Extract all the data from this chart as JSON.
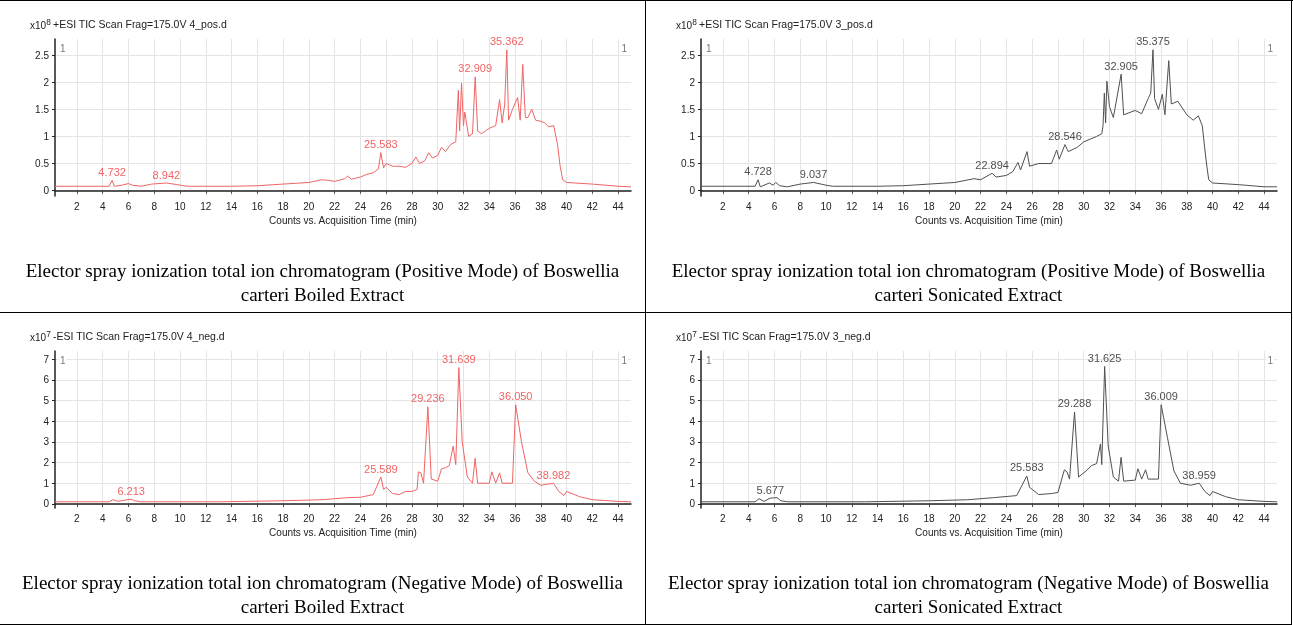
{
  "chart_data": [
    {
      "type": "line",
      "title": "+ESI TIC Scan Frag=175.0V 4_pos.d",
      "subtitle": "Elector spray ionization total ion chromatogram (Positive Mode) of Boswellia carteri Boiled Extract",
      "xlabel": "Counts vs. Acquisition Time (min)",
      "ylabel": "x10$^{8}$",
      "grid": true,
      "marker": "none",
      "xlim": [
        0.3,
        45
      ],
      "xticks": [
        2,
        4,
        6,
        8,
        10,
        12,
        14,
        16,
        18,
        20,
        22,
        24,
        26,
        28,
        30,
        32,
        34,
        36,
        38,
        40,
        42,
        44
      ],
      "ylim": [
        -0.1,
        2.8
      ],
      "yticks": [
        0,
        0.5,
        1,
        1.5,
        2,
        2.5
      ],
      "annotations": [
        "1",
        "1",
        {
          "text": "4.732",
          "x": 4.732,
          "y": 0.19
        },
        {
          "text": "8.942",
          "x": 8.942,
          "y": 0.14
        },
        {
          "text": "25.583",
          "x": 25.583,
          "y": 0.7
        },
        {
          "text": "32.909",
          "x": 32.909,
          "y": 2.1
        },
        {
          "text": "35.362",
          "x": 35.362,
          "y": 2.6
        }
      ],
      "series": [
        {
          "color": "#f06464",
          "x": [
            0.3,
            4.5,
            4.732,
            4.9,
            5.5,
            6.0,
            6.3,
            7,
            7.8,
            8.942,
            9.8,
            10.5,
            14,
            16,
            18,
            20,
            21,
            21.5,
            22,
            22.8,
            23,
            23.3,
            24,
            24.5,
            25,
            25.4,
            25.583,
            25.8,
            26,
            26.5,
            27,
            27.5,
            28,
            28.3,
            28.6,
            29,
            29.3,
            29.6,
            30,
            30.3,
            30.6,
            31,
            31.4,
            31.6,
            31.7,
            31.85,
            32,
            32.1,
            32.4,
            32.7,
            32.909,
            33.1,
            33.4,
            34,
            34.5,
            34.8,
            35,
            35.2,
            35.362,
            35.5,
            35.8,
            36.2,
            36.4,
            36.6,
            36.8,
            37,
            37.3,
            37.6,
            38,
            38.3,
            38.6,
            39,
            39.3,
            39.5,
            39.7,
            40,
            42,
            44,
            45
          ],
          "values": [
            0.08,
            0.08,
            0.19,
            0.08,
            0.1,
            0.13,
            0.1,
            0.08,
            0.12,
            0.14,
            0.11,
            0.08,
            0.08,
            0.09,
            0.12,
            0.15,
            0.2,
            0.19,
            0.17,
            0.22,
            0.27,
            0.21,
            0.25,
            0.3,
            0.33,
            0.4,
            0.7,
            0.42,
            0.5,
            0.45,
            0.45,
            0.43,
            0.5,
            0.62,
            0.5,
            0.55,
            0.7,
            0.6,
            0.65,
            0.8,
            0.72,
            0.85,
            0.9,
            1.85,
            1.1,
            1.98,
            1.2,
            1.45,
            1.0,
            1.05,
            2.1,
            1.1,
            1.05,
            1.15,
            1.2,
            1.68,
            1.25,
            1.6,
            2.6,
            1.3,
            1.5,
            1.72,
            1.3,
            2.33,
            1.35,
            1.35,
            1.5,
            1.3,
            1.28,
            1.25,
            1.18,
            1.2,
            0.85,
            0.45,
            0.2,
            0.15,
            0.12,
            0.08,
            0.07
          ]
        }
      ]
    },
    {
      "type": "line",
      "title": "+ESI TIC Scan Frag=175.0V 3_pos.d",
      "subtitle": "Elector spray ionization total ion chromatogram (Positive Mode) of Boswellia carteri Sonicated Extract",
      "xlabel": "Counts vs. Acquisition Time (min)",
      "ylabel": "x10$^{8}$",
      "grid": true,
      "marker": "none",
      "xlim": [
        0.3,
        45
      ],
      "xticks": [
        2,
        4,
        6,
        8,
        10,
        12,
        14,
        16,
        18,
        20,
        22,
        24,
        26,
        28,
        30,
        32,
        34,
        36,
        38,
        40,
        42,
        44
      ],
      "ylim": [
        -0.1,
        2.8
      ],
      "yticks": [
        0,
        0.5,
        1,
        1.5,
        2,
        2.5
      ],
      "annotations": [
        "1",
        "1",
        {
          "text": "4.728",
          "x": 4.728,
          "y": 0.2
        },
        {
          "text": "9.037",
          "x": 9.037,
          "y": 0.15
        },
        {
          "text": "22.894",
          "x": 22.894,
          "y": 0.32
        },
        {
          "text": "28.546",
          "x": 28.546,
          "y": 0.85
        },
        {
          "text": "32.905",
          "x": 32.905,
          "y": 2.15
        },
        {
          "text": "35.375",
          "x": 35.375,
          "y": 2.6
        }
      ],
      "series": [
        {
          "color": "#505050",
          "x": [
            0.3,
            4.5,
            4.728,
            4.9,
            5.6,
            5.9,
            6.1,
            6.4,
            7,
            8,
            9.037,
            10,
            10.5,
            14,
            16,
            18,
            20,
            21.5,
            22,
            22.894,
            23.2,
            24,
            24.5,
            24.9,
            25.1,
            25.6,
            25.8,
            26.5,
            27.5,
            27.9,
            28.1,
            28.546,
            28.8,
            29.5,
            30,
            30.5,
            31,
            31.4,
            31.5,
            31.6,
            31.7,
            31.8,
            32,
            32.3,
            32.905,
            33.1,
            34,
            34.5,
            35,
            35.2,
            35.375,
            35.5,
            35.8,
            36.1,
            36.3,
            36.6,
            36.8,
            37.3,
            38,
            38.5,
            38.9,
            39.2,
            39.5,
            39.7,
            40,
            42,
            44,
            45
          ],
          "values": [
            0.08,
            0.08,
            0.2,
            0.07,
            0.14,
            0.1,
            0.15,
            0.09,
            0.07,
            0.12,
            0.15,
            0.1,
            0.08,
            0.08,
            0.09,
            0.12,
            0.15,
            0.22,
            0.2,
            0.32,
            0.25,
            0.28,
            0.35,
            0.52,
            0.38,
            0.72,
            0.45,
            0.5,
            0.5,
            0.75,
            0.58,
            0.85,
            0.72,
            0.8,
            0.9,
            0.95,
            1.0,
            1.05,
            1.2,
            1.8,
            1.25,
            2.02,
            1.55,
            1.35,
            2.15,
            1.4,
            1.48,
            1.42,
            1.7,
            1.8,
            2.6,
            1.7,
            1.5,
            1.78,
            1.4,
            2.4,
            1.6,
            1.65,
            1.4,
            1.3,
            1.38,
            1.2,
            0.55,
            0.2,
            0.14,
            0.11,
            0.07,
            0.07
          ]
        }
      ]
    },
    {
      "type": "line",
      "title": "-ESI TIC Scan Frag=175.0V 4_neg.d",
      "subtitle": "Elector spray ionization total ion chromatogram (Negative Mode) of Boswellia carteri Boiled Extract",
      "xlabel": "Counts vs. Acquisition Time (min)",
      "ylabel": "x10$^{7}$",
      "grid": true,
      "marker": "none",
      "xlim": [
        0.3,
        45
      ],
      "xticks": [
        2,
        4,
        6,
        8,
        10,
        12,
        14,
        16,
        18,
        20,
        22,
        24,
        26,
        28,
        30,
        32,
        34,
        36,
        38,
        40,
        42,
        44
      ],
      "ylim": [
        -0.2,
        7.4
      ],
      "yticks": [
        0,
        1,
        2,
        3,
        4,
        5,
        6,
        7
      ],
      "annotations": [
        "1",
        "1",
        {
          "text": "6.213",
          "x": 6.213,
          "y": 0.22
        },
        {
          "text": "25.589",
          "x": 25.589,
          "y": 1.3
        },
        {
          "text": "29.236",
          "x": 29.236,
          "y": 4.7
        },
        {
          "text": "31.639",
          "x": 31.639,
          "y": 6.6
        },
        {
          "text": "36.050",
          "x": 36.05,
          "y": 4.8
        },
        {
          "text": "38.982",
          "x": 38.982,
          "y": 1.0
        }
      ],
      "series": [
        {
          "color": "#f06464",
          "x": [
            0.3,
            4.5,
            4.8,
            5.2,
            5.7,
            6.213,
            6.5,
            7,
            10,
            13,
            18,
            21,
            23,
            24,
            25,
            25.589,
            25.8,
            26,
            26.5,
            27,
            27.5,
            28,
            28.4,
            28.5,
            28.7,
            28.9,
            29.236,
            29.5,
            30,
            30.3,
            30.6,
            30.9,
            31.2,
            31.4,
            31.639,
            31.9,
            32.3,
            32.7,
            32.9,
            33.1,
            34,
            34.2,
            34.5,
            34.8,
            35,
            35.8,
            36.05,
            36.5,
            37,
            37.5,
            38,
            38.982,
            39.4,
            39.8,
            40,
            41,
            42,
            44,
            45
          ],
          "values": [
            0.1,
            0.1,
            0.2,
            0.12,
            0.18,
            0.22,
            0.15,
            0.1,
            0.1,
            0.1,
            0.15,
            0.2,
            0.3,
            0.32,
            0.45,
            1.3,
            0.7,
            0.8,
            0.5,
            0.45,
            0.6,
            0.6,
            0.7,
            1.55,
            1.5,
            1.0,
            4.7,
            1.2,
            1.1,
            1.7,
            1.75,
            1.85,
            2.8,
            1.9,
            6.6,
            3.0,
            1.3,
            1.0,
            2.2,
            1.0,
            1.0,
            1.55,
            1.0,
            1.5,
            1.0,
            1.0,
            4.8,
            3.0,
            1.5,
            1.1,
            0.9,
            1.0,
            0.6,
            0.4,
            0.6,
            0.35,
            0.2,
            0.12,
            0.1
          ]
        }
      ]
    },
    {
      "type": "line",
      "title": "-ESI TIC Scan Frag=175.0V 3_neg.d",
      "subtitle": "Elector spray ionization total ion chromatogram (Negative Mode) of Boswellia carteri Sonicated Extract",
      "xlabel": "Counts vs. Acquisition Time (min)",
      "ylabel": "x10$^{7}$",
      "grid": true,
      "marker": "none",
      "xlim": [
        0.3,
        45
      ],
      "xticks": [
        2,
        4,
        6,
        8,
        10,
        12,
        14,
        16,
        18,
        20,
        22,
        24,
        26,
        28,
        30,
        32,
        34,
        36,
        38,
        40,
        42,
        44
      ],
      "ylim": [
        -0.2,
        7.4
      ],
      "yticks": [
        0,
        1,
        2,
        3,
        4,
        5,
        6,
        7
      ],
      "annotations": [
        "1",
        "1",
        {
          "text": "5.677",
          "x": 5.677,
          "y": 0.28
        },
        {
          "text": "25.583",
          "x": 25.583,
          "y": 1.35
        },
        {
          "text": "29.288",
          "x": 29.288,
          "y": 4.45
        },
        {
          "text": "31.625",
          "x": 31.625,
          "y": 6.65
        },
        {
          "text": "36.009",
          "x": 36.009,
          "y": 4.8
        },
        {
          "text": "38.959",
          "x": 38.959,
          "y": 1.0
        }
      ],
      "series": [
        {
          "color": "#505050",
          "x": [
            0.3,
            4.5,
            4.8,
            5.2,
            5.677,
            6.2,
            6.5,
            7,
            10,
            13,
            18,
            21,
            23,
            24.8,
            25.583,
            25.8,
            26,
            26.5,
            27.5,
            28,
            28.5,
            28.7,
            28.9,
            29.288,
            29.6,
            30.2,
            30.6,
            31,
            31.3,
            31.4,
            31.625,
            31.9,
            32.3,
            32.7,
            32.9,
            33.1,
            34,
            34.2,
            34.5,
            34.8,
            35,
            35.8,
            36.009,
            36.5,
            37,
            37.5,
            38.3,
            38.959,
            39.4,
            39.8,
            40,
            41,
            42,
            44,
            45
          ],
          "values": [
            0.1,
            0.1,
            0.25,
            0.12,
            0.28,
            0.3,
            0.15,
            0.1,
            0.1,
            0.1,
            0.15,
            0.2,
            0.3,
            0.4,
            1.35,
            0.8,
            0.7,
            0.45,
            0.5,
            0.55,
            1.65,
            1.55,
            1.2,
            4.45,
            1.3,
            1.6,
            1.85,
            1.95,
            2.9,
            1.9,
            6.65,
            2.8,
            1.3,
            1.1,
            2.25,
            1.1,
            1.15,
            1.7,
            1.2,
            1.65,
            1.2,
            1.2,
            4.8,
            3.2,
            1.6,
            1.0,
            0.9,
            1.0,
            0.6,
            0.4,
            0.6,
            0.35,
            0.2,
            0.12,
            0.1
          ]
        }
      ]
    }
  ]
}
